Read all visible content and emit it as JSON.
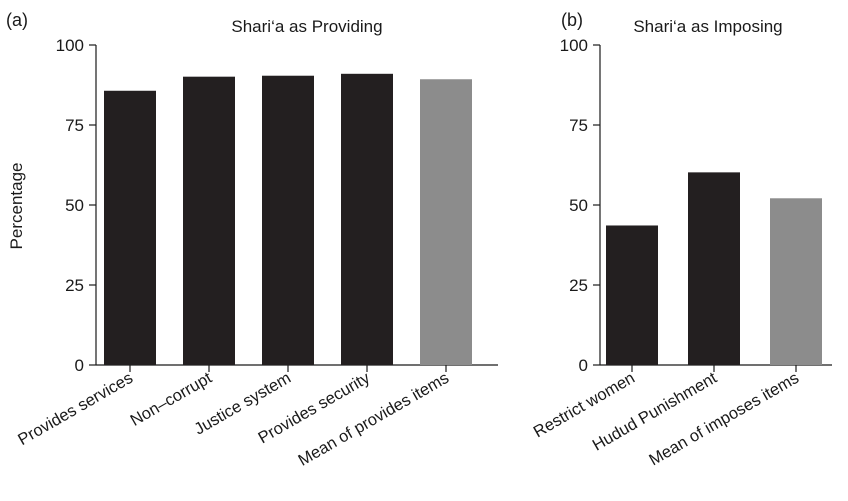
{
  "chart_data": [
    {
      "type": "bar",
      "panel": "(a)",
      "title": "Shari‘a as Providing",
      "ylabel": "Percentage",
      "xlabel": "",
      "ylim": [
        0,
        100
      ],
      "yticks": [
        "0",
        "25",
        "50",
        "75",
        "100"
      ],
      "categories": [
        "Provides services",
        "Non–corrupt",
        "Justice system",
        "Provides security",
        "Mean of provides items"
      ],
      "values": [
        85.7,
        90.1,
        90.4,
        91.0,
        89.3
      ],
      "colors": [
        "#231f20",
        "#231f20",
        "#231f20",
        "#231f20",
        "#8c8c8c"
      ],
      "grid": false
    },
    {
      "type": "bar",
      "panel": "(b)",
      "title": "Shari‘a as Imposing",
      "ylabel": "",
      "xlabel": "",
      "ylim": [
        0,
        100
      ],
      "yticks": [
        "0",
        "25",
        "50",
        "75",
        "100"
      ],
      "categories": [
        "Restrict women",
        "Hudud Punishment",
        "Mean of imposes items"
      ],
      "values": [
        43.6,
        60.2,
        52.1
      ],
      "colors": [
        "#231f20",
        "#231f20",
        "#8c8c8c"
      ],
      "grid": false
    }
  ]
}
